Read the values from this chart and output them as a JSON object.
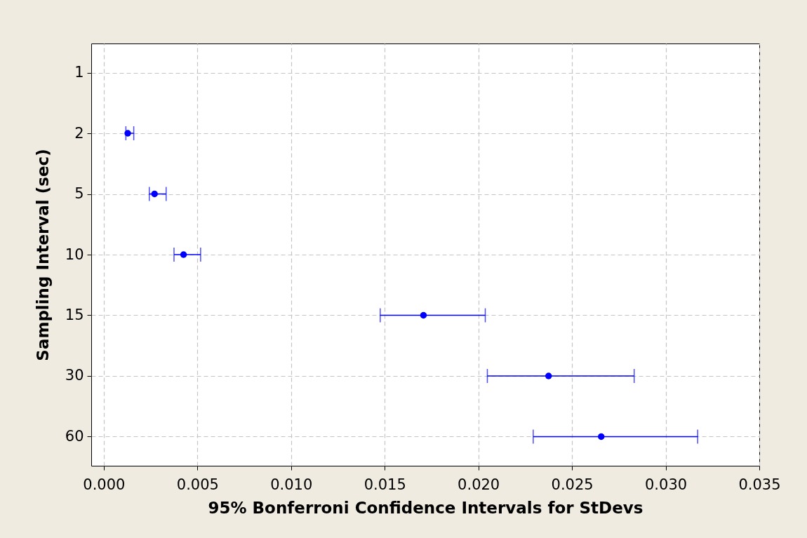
{
  "chart_data": {
    "type": "scatter",
    "orientation": "horizontal",
    "xlabel": "95% Bonferroni Confidence Intervals for StDevs",
    "ylabel": "Sampling Interval (sec)",
    "categories": [
      "1",
      "2",
      "5",
      "10",
      "15",
      "30",
      "60"
    ],
    "values": [
      null,
      0.00128,
      0.00271,
      0.00426,
      0.01707,
      0.02375,
      0.02656
    ],
    "errors": [
      null,
      [
        0.00118,
        0.0016
      ],
      [
        0.00243,
        0.00333
      ],
      [
        0.00375,
        0.00517
      ],
      [
        0.01476,
        0.02037
      ],
      [
        0.02048,
        0.02832
      ],
      [
        0.02293,
        0.03171
      ]
    ],
    "color": "#0000ff",
    "xlim": [
      -0.00067,
      0.035
    ],
    "xticks": [
      {
        "value": 0,
        "label": "0.000"
      },
      {
        "value": 0.005,
        "label": "0.005"
      },
      {
        "value": 0.01,
        "label": "0.010"
      },
      {
        "value": 0.015,
        "label": "0.015"
      },
      {
        "value": 0.02,
        "label": "0.020"
      },
      {
        "value": 0.025,
        "label": "0.025"
      },
      {
        "value": 0.03,
        "label": "0.030"
      },
      {
        "value": 0.035,
        "label": "0.035"
      }
    ],
    "grid": true,
    "marker": "circle"
  }
}
